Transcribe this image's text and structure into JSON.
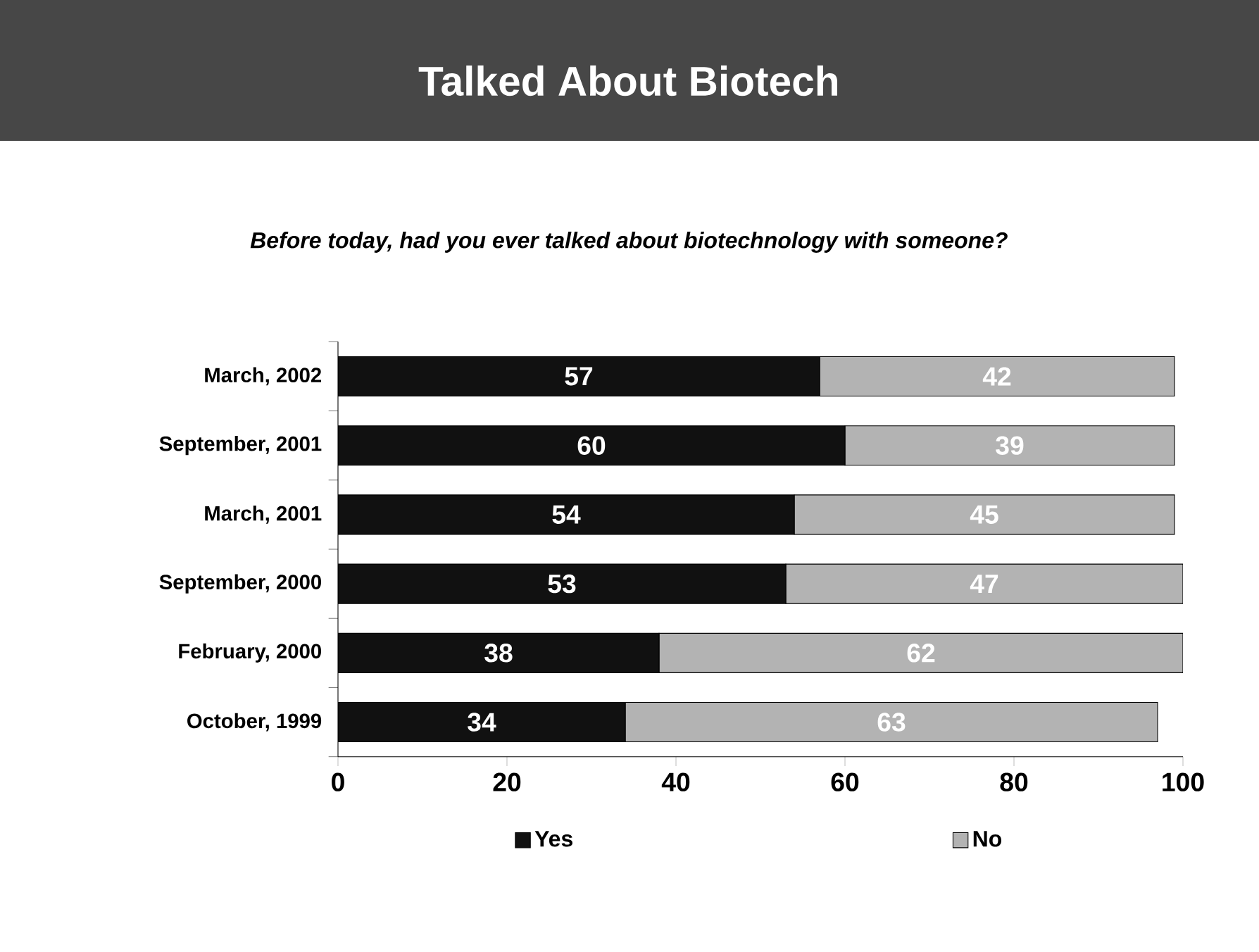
{
  "chart_data": {
    "type": "bar",
    "orientation": "horizontal",
    "stacked": true,
    "title": "Talked About Biotech",
    "subtitle": "Before today, had you ever talked about biotechnology with someone?",
    "categories": [
      "March, 2002",
      "September, 2001",
      "March, 2001",
      "September, 2000",
      "February, 2000",
      "October, 1999"
    ],
    "series": [
      {
        "name": "Yes",
        "color": "#111111",
        "values": [
          57,
          60,
          54,
          53,
          38,
          34
        ]
      },
      {
        "name": "No",
        "color": "#b3b3b3",
        "values": [
          42,
          39,
          45,
          47,
          62,
          63
        ]
      }
    ],
    "xlim": [
      0,
      100
    ],
    "xticks": [
      0,
      20,
      40,
      60,
      80,
      100
    ],
    "data_labels": true,
    "legend": "bottom",
    "grid": false
  }
}
